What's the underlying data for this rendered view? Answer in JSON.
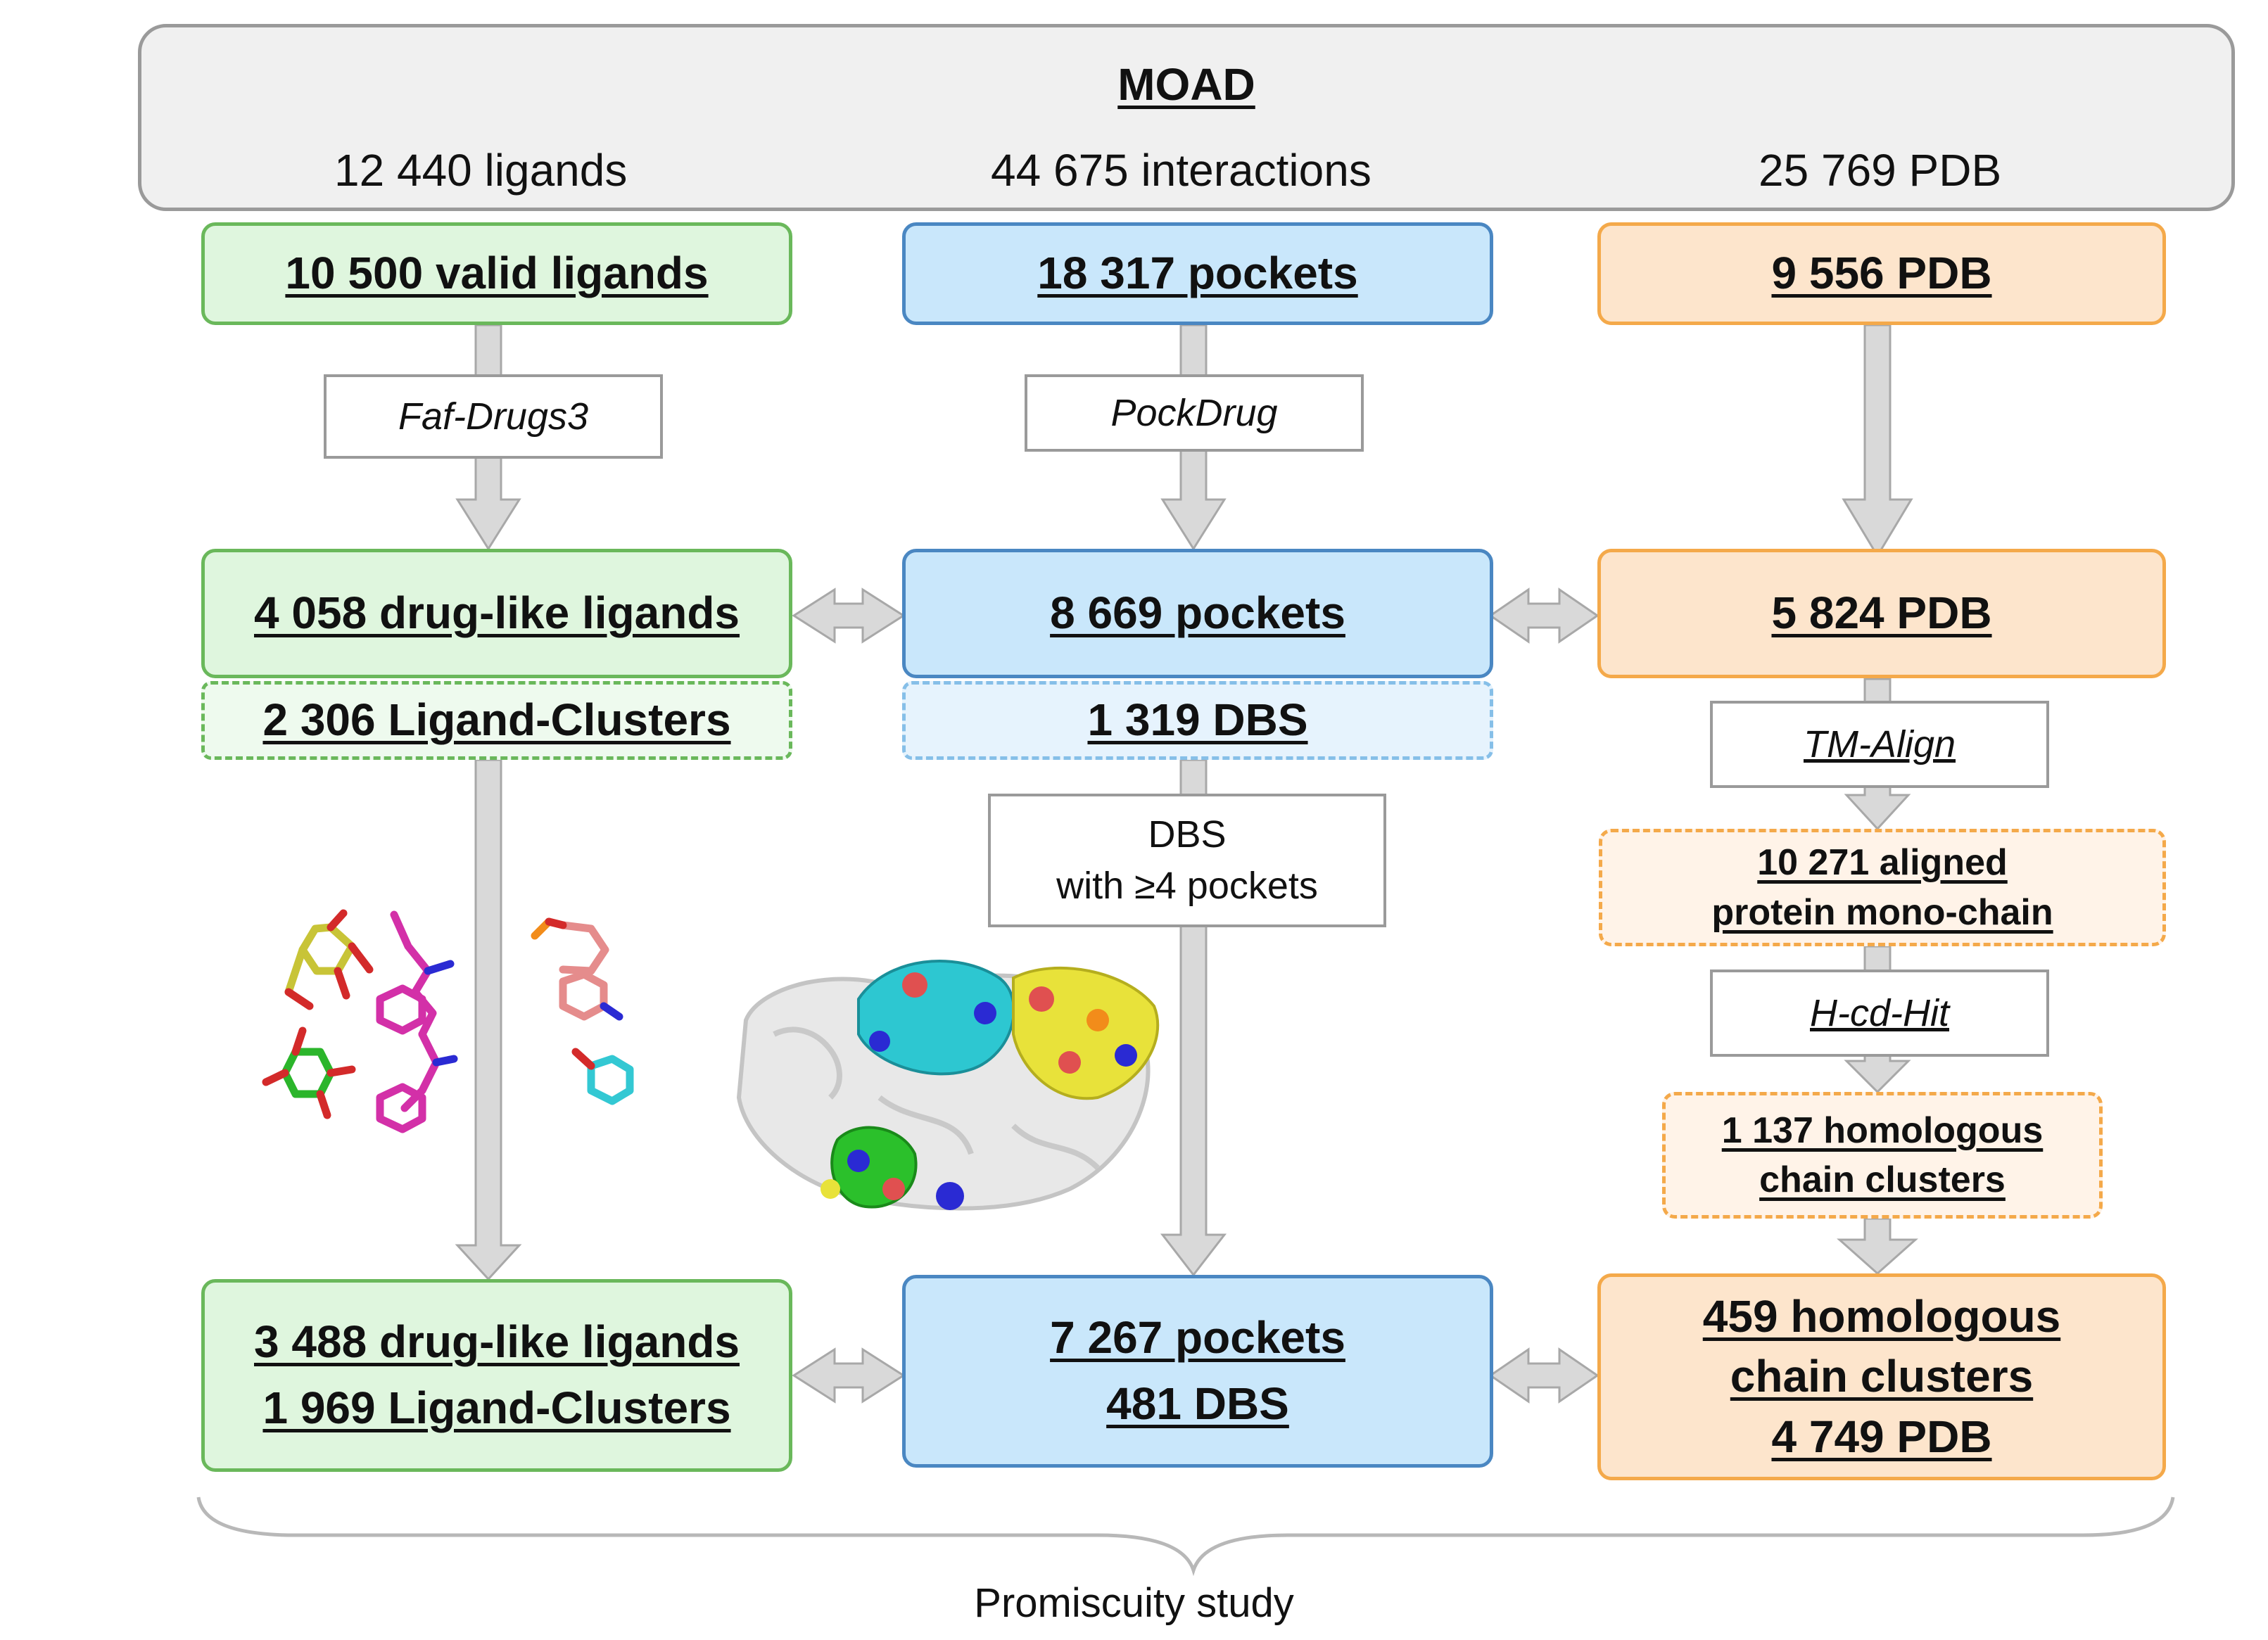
{
  "moad": {
    "title": "MOAD",
    "ligands": "12 440 ligands",
    "interactions": "44 675 interactions",
    "pdb": "25 769 PDB"
  },
  "ligand_column": {
    "valid": "10 500 valid ligands",
    "tool": "Faf-Drugs3",
    "drug_like": "4 058  drug-like ligands",
    "clusters": "2 306 Ligand-Clusters",
    "final_line1": "3 488  drug-like ligands",
    "final_line2": "1 969 Ligand-Clusters"
  },
  "pocket_column": {
    "pockets": "18 317 pockets",
    "tool": "PockDrug",
    "druggable": "8 669 pockets",
    "dbs": "1 319 DBS",
    "filter_line1": "DBS",
    "filter_line2": "with ≥4 pockets",
    "final_line1": "7 267 pockets",
    "final_line2": "481 DBS"
  },
  "pdb_column": {
    "pdb": "9 556 PDB",
    "pdb_filtered": "5 824 PDB",
    "tool_align": "TM-Align",
    "aligned_line1": "10 271 aligned",
    "aligned_line2": "protein mono-chain",
    "tool_cdhit": "H-cd-Hit",
    "homologous_line1": "1 137 homologous",
    "homologous_line2": "chain clusters",
    "final_line1": "459 homologous",
    "final_line2": "chain clusters",
    "final_line3": "4 749 PDB"
  },
  "footer": {
    "label": "Promiscuity study"
  },
  "colors": {
    "green_fill": "#dff6de",
    "green_border": "#6ab85b",
    "blue_fill": "#c9e7fb",
    "blue_border": "#4a87c2",
    "orange_fill": "#fde5cc",
    "orange_border": "#f4a94a",
    "arrow": "#d6d6d6"
  }
}
